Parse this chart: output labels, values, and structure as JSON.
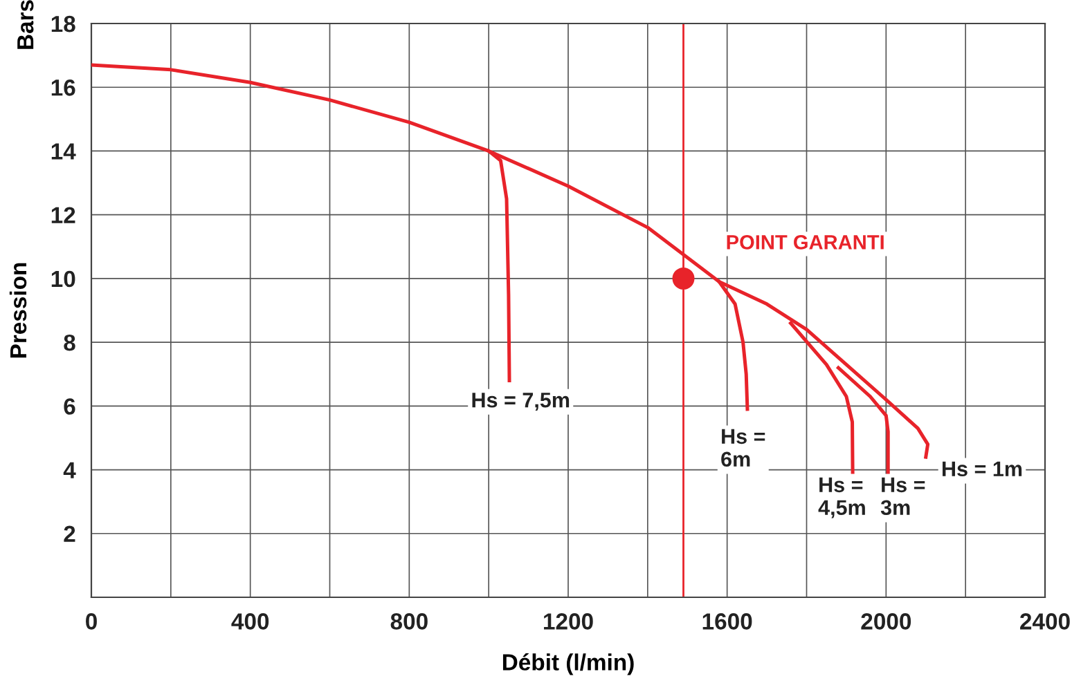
{
  "chart_data": {
    "type": "line",
    "xlabel": "Débit (l/min)",
    "ylabel": "Pression",
    "annotations": [
      "Bars",
      {
        "text": "POINT GARANTI",
        "x": 1490,
        "y": 10
      }
    ],
    "series": [
      {
        "name": "Hs = 1m",
        "color": "#e8232a",
        "x": [
          0,
          200,
          400,
          600,
          800,
          1000,
          1200,
          1400,
          1580,
          1700,
          1800,
          1900,
          2000,
          2080,
          2105,
          2100
        ],
        "values": [
          16.7,
          16.55,
          16.15,
          15.6,
          14.9,
          14,
          12.9,
          11.6,
          9.9,
          9.2,
          8.4,
          7.3,
          6.2,
          5.3,
          4.8,
          4.4
        ]
      },
      {
        "name": "Hs = 7,5m",
        "color": "#e8232a",
        "x": [
          1000,
          1030,
          1045,
          1050,
          1052
        ],
        "values": [
          14,
          13.7,
          12.5,
          9.5,
          6.8
        ]
      },
      {
        "name": "Hs =\n6m",
        "color": "#e8232a",
        "x": [
          1580,
          1620,
          1640,
          1648,
          1651
        ],
        "values": [
          9.9,
          9.2,
          8.0,
          7.0,
          5.9
        ]
      },
      {
        "name": "Hs =\n4,5m",
        "color": "#e8232a",
        "x": [
          1760,
          1850,
          1900,
          1915,
          1916
        ],
        "values": [
          8.6,
          7.3,
          6.3,
          5.5,
          3.9
        ]
      },
      {
        "name": "Hs =\n3m",
        "color": "#e8232a",
        "x": [
          1880,
          1960,
          2000,
          2005,
          2005
        ],
        "values": [
          7.2,
          6.3,
          5.7,
          5.2,
          3.9
        ]
      },
      {
        "type": "scatter",
        "marker": "circle",
        "color": "#e8232a",
        "x": [
          1490
        ],
        "values": [
          10
        ]
      }
    ],
    "ref_lines": [
      {
        "axis": "x",
        "value": 1490,
        "color": "#e8232a"
      }
    ],
    "xlim": [
      0,
      2400
    ],
    "ylim": [
      0,
      18
    ],
    "xticks": [
      0,
      {
        "value": 200,
        "label": null
      },
      400,
      {
        "value": 600,
        "label": null
      },
      800,
      {
        "value": 1000,
        "label": null
      },
      1200,
      {
        "value": 1400,
        "label": null
      },
      1600,
      {
        "value": 1800,
        "label": null
      },
      2000,
      {
        "value": 2200,
        "label": null
      },
      2400
    ],
    "yticks": [
      {
        "value": 0,
        "label": null
      },
      2,
      4,
      6,
      8,
      10,
      12,
      14,
      16,
      18
    ],
    "grid": true,
    "marker": "none",
    "line_style": "solid",
    "legend": false
  }
}
